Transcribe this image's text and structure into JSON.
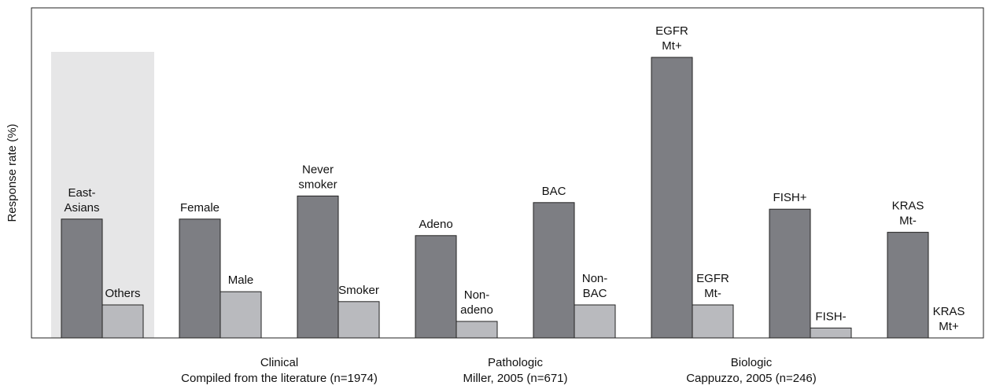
{
  "chart_data": {
    "type": "bar",
    "y_label": "Response rate (%)",
    "ylim": [
      0,
      100
    ],
    "categories": [
      [
        "East-",
        "Asians"
      ],
      [
        "Others"
      ],
      [
        "Female"
      ],
      [
        "Male"
      ],
      [
        "Never",
        "smoker"
      ],
      [
        "Smoker"
      ],
      [
        "Adeno"
      ],
      [
        "Non-",
        "adeno"
      ],
      [
        "BAC"
      ],
      [
        "Non-",
        "BAC"
      ],
      [
        "EGFR",
        "Mt+"
      ],
      [
        "EGFR",
        "Mt-"
      ],
      [
        "FISH+"
      ],
      [
        "FISH-"
      ],
      [
        "KRAS",
        "Mt-"
      ],
      [
        "KRAS",
        "Mt+"
      ]
    ],
    "values": [
      36,
      10,
      36,
      14,
      43,
      11,
      31,
      5,
      41,
      10,
      85,
      10,
      39,
      3,
      32,
      0
    ],
    "colors": [
      "#7d7e83",
      "#b9babe"
    ],
    "highlight_color": "#e6e6e7",
    "groups": [
      {
        "name": "Clinical",
        "source": "Compiled from the literature (n=1974)"
      },
      {
        "name": "Pathologic",
        "source": "Miller, 2005 (n=671)"
      },
      {
        "name": "Biologic",
        "source": "Cappuzzo, 2005 (n=246)"
      }
    ]
  }
}
